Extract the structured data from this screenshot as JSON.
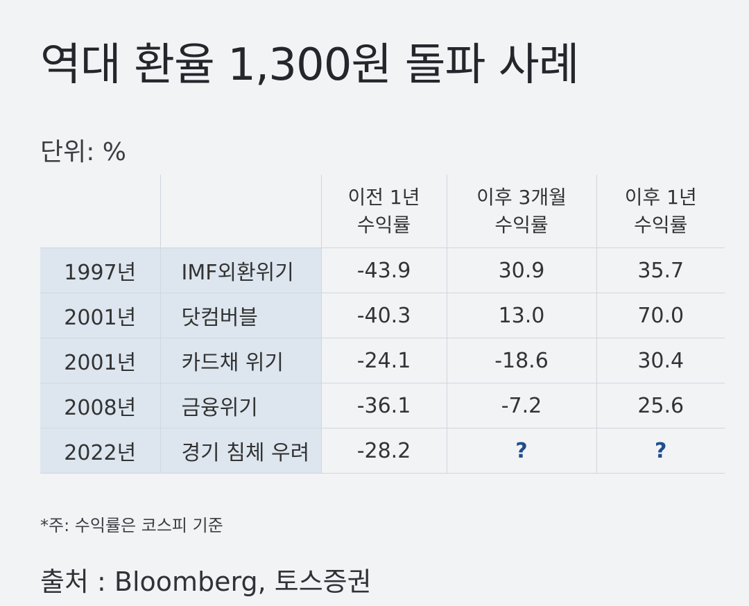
{
  "title": "역대 환율 1,300원 돌파 사례",
  "unit": "단위: %",
  "table": {
    "headers": [
      [
        "이전 1년",
        "수익률"
      ],
      [
        "이후 3개월",
        "수익률"
      ],
      [
        "이후 1년",
        "수익률"
      ]
    ],
    "rows": [
      {
        "year": "1997년",
        "event": "IMF외환위기",
        "before_1y": "-43.9",
        "after_3m": "30.9",
        "after_1y": "35.7"
      },
      {
        "year": "2001년",
        "event": "닷컴버블",
        "before_1y": "-40.3",
        "after_3m": "13.0",
        "after_1y": "70.0"
      },
      {
        "year": "2001년",
        "event": "카드채 위기",
        "before_1y": "-24.1",
        "after_3m": "-18.6",
        "after_1y": "30.4"
      },
      {
        "year": "2008년",
        "event": "금융위기",
        "before_1y": "-36.1",
        "after_3m": "-7.2",
        "after_1y": "25.6"
      },
      {
        "year": "2022년",
        "event": "경기 침체 우려",
        "before_1y": "-28.2",
        "after_3m": "?",
        "after_1y": "?"
      }
    ]
  },
  "note": "*주: 수익률은 코스피 기준",
  "source": "출처 : Bloomberg, 토스증권",
  "colors": {
    "background": "#f2f3f5",
    "label_cell_bg": "#dde6ef",
    "grid_line": "#cfd6de",
    "question_mark": "#1f4e8c"
  }
}
